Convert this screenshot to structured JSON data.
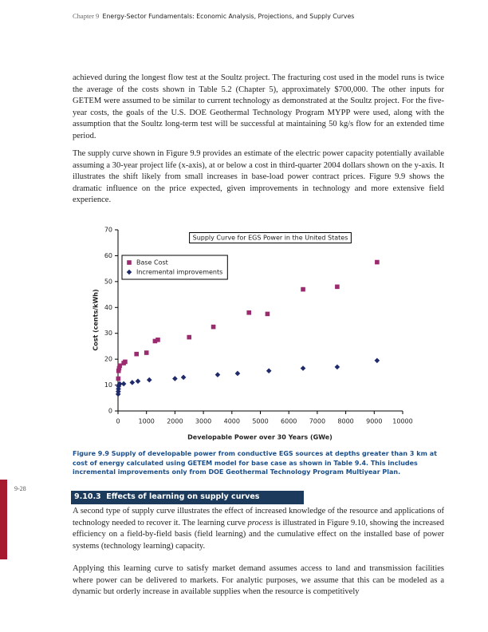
{
  "header": {
    "chapter": "Chapter 9",
    "title": "Energy-Sector Fundamentals: Economic Analysis, Projections, and Supply Curves"
  },
  "page_number": "9-28",
  "paragraphs": [
    "achieved during the longest flow test at the Soultz project. The fracturing cost used in the model runs is twice the average of the costs shown in Table 5.2 (Chapter 5), approximately $700,000. The other inputs for GETEM were assumed to be similar to current technology as demonstrated at the Soultz project. For the five-year costs, the goals of the U.S. DOE Geothermal Technology Program MYPP were used, along with the assumption that the Soultz long-term test will be successful at maintaining 50 kg/s flow for an extended time period.",
    "The supply curve shown in Figure 9.9 provides an estimate of the electric power capacity potentially available assuming a 30-year project life (x-axis), at or below a cost in third-quarter 2004 dollars shown on the y-axis. It illustrates the shift likely from small increases in base-load power contract prices. Figure 9.9 shows the dramatic influence on the price expected, given improvements in technology and more extensive field experience."
  ],
  "chart_data": {
    "type": "scatter",
    "title": "Supply Curve for EGS Power in the United States",
    "xlabel": "Developable Power over 30 Years (GWe)",
    "ylabel": "Cost (cents/kWh)",
    "xlim": [
      0,
      10000
    ],
    "ylim": [
      0,
      70
    ],
    "xticks": [
      0,
      1000,
      2000,
      3000,
      4000,
      5000,
      6000,
      7000,
      8000,
      9000,
      10000
    ],
    "yticks": [
      0,
      10,
      20,
      30,
      40,
      50,
      60,
      70
    ],
    "legend": "upper-left",
    "series": [
      {
        "name": "Base Cost",
        "color": "#9b2a6e",
        "marker": "square",
        "x": [
          10,
          20,
          40,
          60,
          200,
          250,
          650,
          1000,
          1300,
          1400,
          2500,
          3350,
          4600,
          5250,
          6500,
          7700,
          9100
        ],
        "values": [
          12.5,
          15.5,
          16.5,
          17.5,
          18.5,
          19,
          22,
          22.5,
          27,
          27.5,
          28.5,
          32.5,
          38,
          37.5,
          47,
          48,
          57.5
        ]
      },
      {
        "name": "Incremental improvements",
        "color": "#1f2a6b",
        "marker": "diamond",
        "x": [
          5,
          10,
          15,
          20,
          30,
          60,
          200,
          500,
          700,
          1100,
          2000,
          2300,
          3500,
          4200,
          5300,
          6500,
          7700,
          9100
        ],
        "values": [
          6.5,
          7.5,
          8.5,
          9.5,
          10,
          10.5,
          10.5,
          11,
          11.5,
          12,
          12.5,
          13,
          14,
          14.5,
          15.5,
          16.5,
          17,
          19.5
        ]
      }
    ]
  },
  "figure_caption": "Figure 9.9 Supply of developable power from conductive EGS sources at depths greater than 3 km at cost of energy calculated using GETEM model for base case as shown in Table 9.4. This includes incremental improvements only from DOE Geothermal Technology Program Multiyear Plan.",
  "section_heading": "9.10.3  Effects of learning on supply curves",
  "paragraphs_after": [
    [
      "A second type of supply curve illustrates the effect of increased knowledge of the resource and applications of technology needed to recover it. The learning curve ",
      "process",
      " is illustrated in Figure 9.10, showing the increased efficiency on a field-by-field basis (field learning) and the cumulative effect on the installed base of power systems (technology learning) capacity."
    ],
    "Applying this learning curve to satisfy market demand assumes access to land and transmission facilities where power can be delivered to markets. For analytic purposes, we assume that this can be modeled as a dynamic but orderly increase in available supplies when the resource is competitively"
  ]
}
